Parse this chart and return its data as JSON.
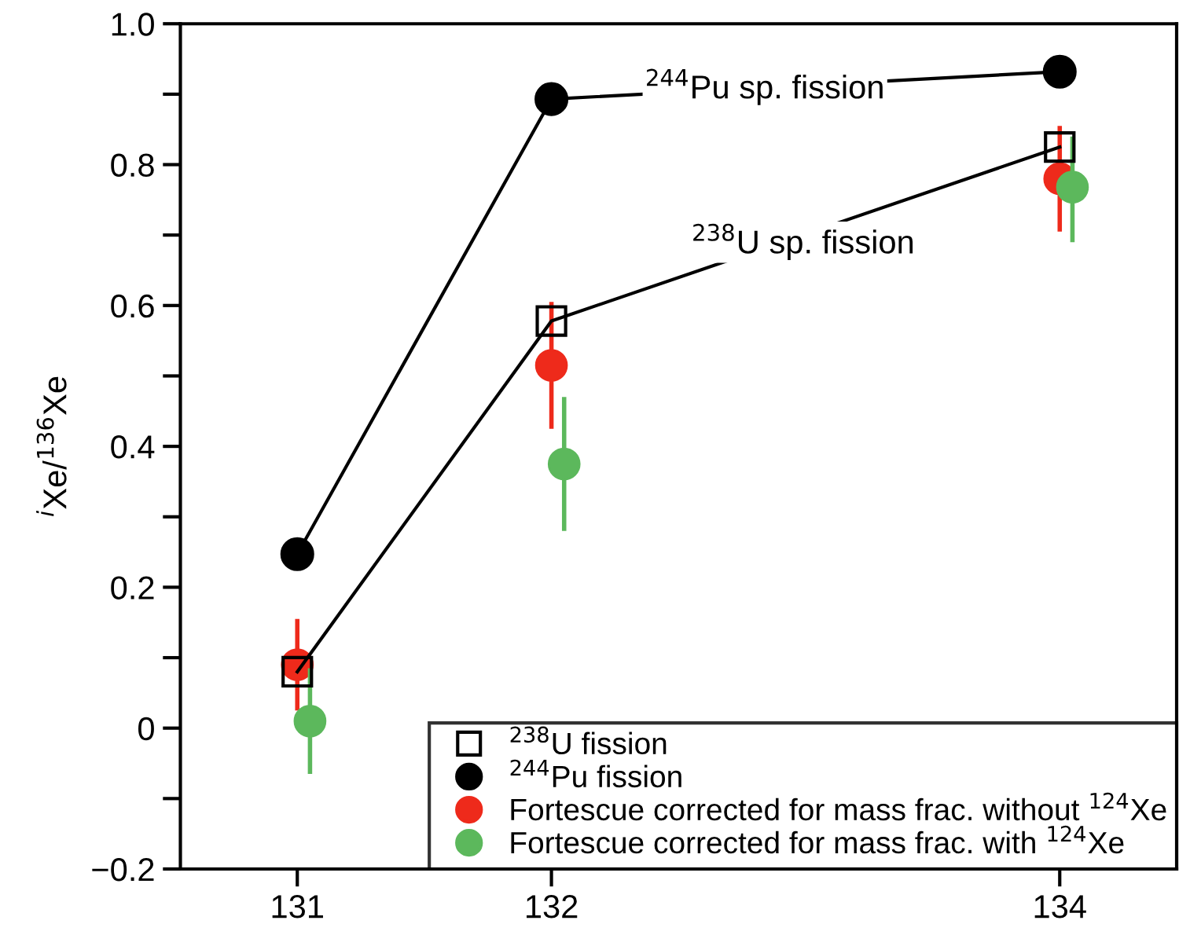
{
  "chart_data": {
    "type": "line",
    "ylabel": "$^{i}$Xe/$^{136}$Xe",
    "xlim": [
      130.54,
      134.46
    ],
    "xticks": [
      131,
      132,
      134
    ],
    "ylim": [
      -0.2,
      1.0
    ],
    "yticks": [
      {
        "value": -0.2,
        "label": "−0.2"
      },
      {
        "value": -0.1,
        "label": null
      },
      0,
      {
        "value": 0.1,
        "label": null
      },
      0.2,
      {
        "value": 0.3,
        "label": null
      },
      0.4,
      {
        "value": 0.5,
        "label": null
      },
      0.6,
      {
        "value": 0.7,
        "label": null
      },
      0.8,
      {
        "value": 0.9,
        "label": null
      },
      {
        "value": 1.0,
        "label": "1.0"
      }
    ],
    "grid": false,
    "legend": "bottom right",
    "series": [
      {
        "name": "$^{238}$U fission",
        "marker": "square",
        "color": "#000000",
        "x": [
          131,
          132,
          134
        ],
        "values": [
          0.08,
          0.578,
          0.825
        ]
      },
      {
        "name": "$^{244}$Pu fission",
        "marker": "circle",
        "color": "#000000",
        "x": [
          131,
          132,
          134
        ],
        "values": [
          0.247,
          0.893,
          0.932
        ]
      },
      {
        "name": "Fortescue corrected for mass frac. without $^{124}$Xe",
        "type": "scatter",
        "marker": "circle",
        "color": "#ee2a1b",
        "x": [
          131,
          132,
          134
        ],
        "values": [
          0.09,
          0.515,
          0.78
        ],
        "errors": [
          [
            0.025,
            0.155
          ],
          [
            0.425,
            0.605
          ],
          [
            0.705,
            0.855
          ]
        ]
      },
      {
        "name": "Fortescue corrected for mass frac. with $^{124}$Xe",
        "type": "scatter",
        "marker": "circle",
        "color": "#5cb85c",
        "x": [
          131.05,
          132.05,
          134.05
        ],
        "values": [
          0.01,
          0.375,
          0.768
        ],
        "errors": [
          [
            -0.065,
            0.085
          ],
          [
            0.28,
            0.47
          ],
          [
            0.69,
            0.84
          ]
        ]
      }
    ],
    "annotations": [
      {
        "text": "$^{244}$Pu sp. fission",
        "x": 132.84,
        "y": 0.91
      },
      {
        "text": "$^{238}$U sp. fission",
        "x": 132.99,
        "y": 0.69
      }
    ]
  }
}
